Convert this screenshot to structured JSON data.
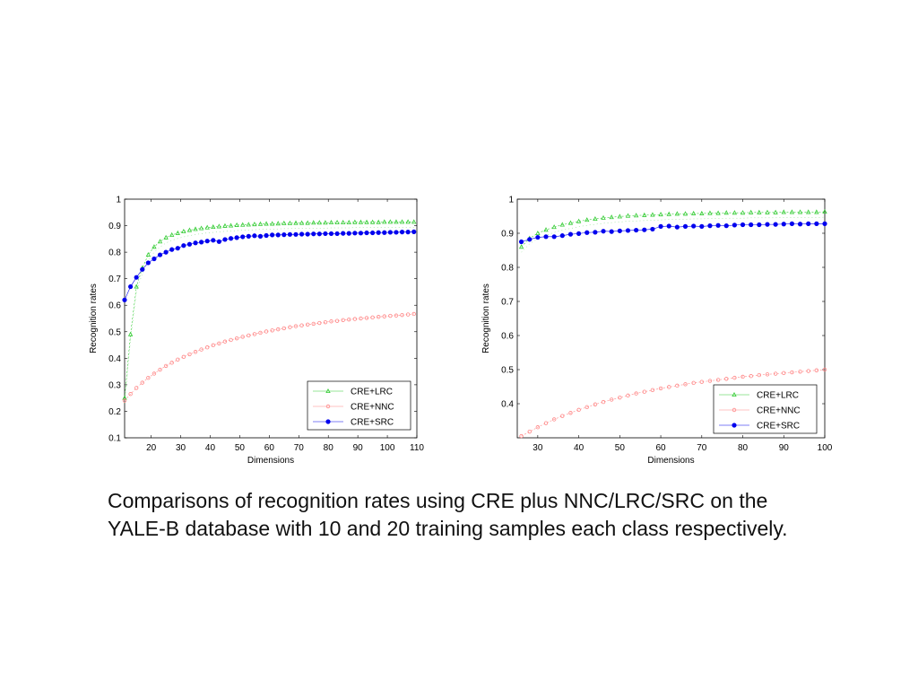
{
  "caption": "Comparisons of recognition rates using CRE plus NNC/LRC/SRC on the YALE-B database with 10 and 20 training samples each class respectively.",
  "chart_data": [
    {
      "type": "line",
      "xlabel": "Dimensions",
      "ylabel": "Recognition rates",
      "xlim": [
        11,
        110
      ],
      "ylim": [
        0.1,
        1
      ],
      "xticks": [
        20,
        30,
        40,
        50,
        60,
        70,
        80,
        90,
        100,
        110
      ],
      "yticks": [
        0.1,
        0.2,
        0.3,
        0.4,
        0.5,
        0.6,
        0.7,
        0.8,
        0.9,
        1
      ],
      "grid": false,
      "legend_position": "bottom-right",
      "x": [
        11,
        13,
        15,
        17,
        19,
        21,
        23,
        25,
        27,
        29,
        31,
        33,
        35,
        37,
        39,
        41,
        43,
        45,
        47,
        49,
        51,
        53,
        55,
        57,
        59,
        61,
        63,
        65,
        67,
        69,
        71,
        73,
        75,
        77,
        79,
        81,
        83,
        85,
        87,
        89,
        91,
        93,
        95,
        97,
        99,
        101,
        103,
        105,
        107,
        109
      ],
      "series": [
        {
          "name": "CRE+LRC",
          "color": "#33cc33",
          "marker": "triangle",
          "values": [
            0.25,
            0.49,
            0.67,
            0.74,
            0.79,
            0.82,
            0.84,
            0.855,
            0.865,
            0.872,
            0.878,
            0.883,
            0.887,
            0.89,
            0.893,
            0.895,
            0.897,
            0.899,
            0.9,
            0.902,
            0.903,
            0.904,
            0.905,
            0.906,
            0.907,
            0.907,
            0.908,
            0.909,
            0.909,
            0.91,
            0.91,
            0.91,
            0.911,
            0.911,
            0.911,
            0.912,
            0.912,
            0.912,
            0.912,
            0.913,
            0.913,
            0.913,
            0.913,
            0.913,
            0.914,
            0.914,
            0.914,
            0.914,
            0.914,
            0.914
          ]
        },
        {
          "name": "CRE+NNC",
          "color": "#ff8888",
          "marker": "circle-open",
          "values": [
            0.24,
            0.265,
            0.288,
            0.308,
            0.326,
            0.342,
            0.357,
            0.371,
            0.383,
            0.395,
            0.405,
            0.415,
            0.424,
            0.433,
            0.441,
            0.449,
            0.456,
            0.463,
            0.469,
            0.475,
            0.481,
            0.486,
            0.491,
            0.496,
            0.501,
            0.505,
            0.509,
            0.513,
            0.517,
            0.521,
            0.524,
            0.527,
            0.53,
            0.533,
            0.536,
            0.539,
            0.541,
            0.544,
            0.546,
            0.548,
            0.55,
            0.552,
            0.554,
            0.556,
            0.558,
            0.56,
            0.561,
            0.563,
            0.565,
            0.567
          ]
        },
        {
          "name": "CRE+SRC",
          "color": "#0000ee",
          "marker": "dot",
          "values": [
            0.62,
            0.67,
            0.705,
            0.735,
            0.76,
            0.775,
            0.79,
            0.8,
            0.81,
            0.815,
            0.825,
            0.83,
            0.835,
            0.838,
            0.842,
            0.845,
            0.84,
            0.848,
            0.852,
            0.855,
            0.858,
            0.86,
            0.862,
            0.86,
            0.863,
            0.865,
            0.865,
            0.866,
            0.867,
            0.867,
            0.868,
            0.868,
            0.869,
            0.869,
            0.87,
            0.87,
            0.87,
            0.871,
            0.871,
            0.872,
            0.872,
            0.873,
            0.873,
            0.874,
            0.874,
            0.875,
            0.875,
            0.876,
            0.876,
            0.877
          ]
        }
      ]
    },
    {
      "type": "line",
      "xlabel": "Dimensions",
      "ylabel": "Recognition rates",
      "xlim": [
        25,
        100
      ],
      "ylim": [
        0.3,
        1
      ],
      "xticks": [
        30,
        40,
        50,
        60,
        70,
        80,
        90,
        100
      ],
      "yticks": [
        0.4,
        0.5,
        0.6,
        0.7,
        0.8,
        0.9,
        1
      ],
      "grid": false,
      "legend_position": "bottom-right",
      "x": [
        26,
        28,
        30,
        32,
        34,
        36,
        38,
        40,
        42,
        44,
        46,
        48,
        50,
        52,
        54,
        56,
        58,
        60,
        62,
        64,
        66,
        68,
        70,
        72,
        74,
        76,
        78,
        80,
        82,
        84,
        86,
        88,
        90,
        92,
        94,
        96,
        98,
        100
      ],
      "series": [
        {
          "name": "CRE+LRC",
          "color": "#33cc33",
          "marker": "triangle",
          "values": [
            0.86,
            0.885,
            0.9,
            0.91,
            0.918,
            0.925,
            0.93,
            0.935,
            0.939,
            0.942,
            0.945,
            0.947,
            0.949,
            0.951,
            0.952,
            0.953,
            0.954,
            0.955,
            0.956,
            0.957,
            0.957,
            0.958,
            0.958,
            0.959,
            0.959,
            0.96,
            0.96,
            0.96,
            0.961,
            0.961,
            0.961,
            0.961,
            0.962,
            0.962,
            0.962,
            0.962,
            0.962,
            0.963
          ]
        },
        {
          "name": "CRE+NNC",
          "color": "#ff8888",
          "marker": "circle-open",
          "values": [
            0.305,
            0.318,
            0.331,
            0.343,
            0.354,
            0.364,
            0.373,
            0.382,
            0.39,
            0.398,
            0.405,
            0.412,
            0.418,
            0.424,
            0.43,
            0.435,
            0.44,
            0.445,
            0.449,
            0.453,
            0.457,
            0.461,
            0.464,
            0.467,
            0.47,
            0.473,
            0.476,
            0.479,
            0.481,
            0.484,
            0.486,
            0.488,
            0.49,
            0.492,
            0.494,
            0.496,
            0.498,
            0.5
          ]
        },
        {
          "name": "CRE+SRC",
          "color": "#0000ee",
          "marker": "dot",
          "values": [
            0.875,
            0.882,
            0.888,
            0.89,
            0.89,
            0.893,
            0.897,
            0.899,
            0.902,
            0.903,
            0.906,
            0.905,
            0.907,
            0.908,
            0.909,
            0.91,
            0.912,
            0.92,
            0.921,
            0.918,
            0.92,
            0.921,
            0.92,
            0.922,
            0.923,
            0.922,
            0.924,
            0.925,
            0.925,
            0.925,
            0.926,
            0.926,
            0.927,
            0.928,
            0.927,
            0.928,
            0.928,
            0.928
          ]
        }
      ]
    }
  ]
}
